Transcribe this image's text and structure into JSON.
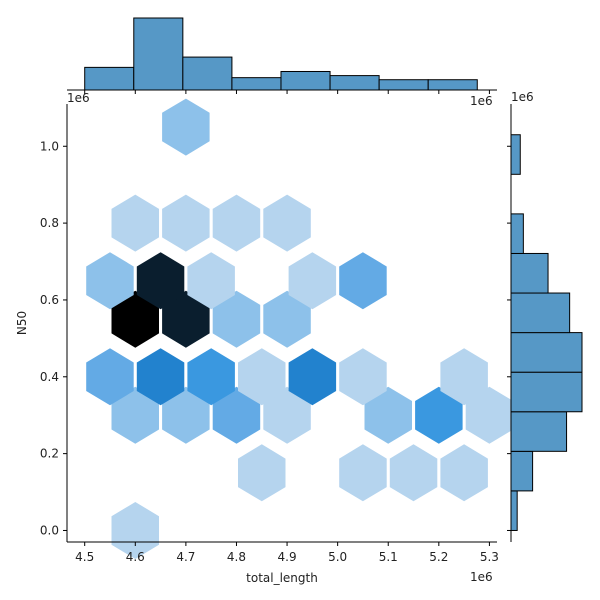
{
  "chart_data": {
    "type": "hexbin-jointplot",
    "xlabel": "total_length",
    "ylabel": "N50",
    "x_offset_text": "1e6",
    "y_offset_text": "1e6",
    "x_ticks": [
      4.5,
      4.6,
      4.7,
      4.8,
      4.9,
      5.0,
      5.1,
      5.2,
      5.3
    ],
    "x_tick_labels": [
      "4.5",
      "4.6",
      "4.7",
      "4.8",
      "4.9",
      "5.0",
      "5.1",
      "5.2",
      "5.3"
    ],
    "y_ticks": [
      0.0,
      0.2,
      0.4,
      0.6,
      0.8,
      1.0
    ],
    "y_tick_labels": [
      "0.0",
      "0.2",
      "0.4",
      "0.6",
      "0.8",
      "1.0"
    ],
    "xlim": [
      4.465,
      5.315
    ],
    "ylim": [
      -0.03,
      1.11
    ],
    "hexbins": [
      {
        "x": 4.6,
        "y": 0.0,
        "count": 1
      },
      {
        "x": 4.85,
        "y": 0.15,
        "count": 1
      },
      {
        "x": 5.05,
        "y": 0.15,
        "count": 2
      },
      {
        "x": 5.15,
        "y": 0.15,
        "count": 2
      },
      {
        "x": 5.25,
        "y": 0.15,
        "count": 1
      },
      {
        "x": 4.6,
        "y": 0.3,
        "count": 4
      },
      {
        "x": 4.7,
        "y": 0.3,
        "count": 3
      },
      {
        "x": 4.8,
        "y": 0.3,
        "count": 5
      },
      {
        "x": 4.9,
        "y": 0.3,
        "count": 2
      },
      {
        "x": 5.1,
        "y": 0.3,
        "count": 3
      },
      {
        "x": 5.2,
        "y": 0.3,
        "count": 6
      },
      {
        "x": 5.3,
        "y": 0.3,
        "count": 2
      },
      {
        "x": 4.55,
        "y": 0.4,
        "count": 5
      },
      {
        "x": 4.65,
        "y": 0.4,
        "count": 9
      },
      {
        "x": 4.75,
        "y": 0.4,
        "count": 7
      },
      {
        "x": 4.85,
        "y": 0.4,
        "count": 1
      },
      {
        "x": 4.95,
        "y": 0.4,
        "count": 9
      },
      {
        "x": 5.05,
        "y": 0.4,
        "count": 1
      },
      {
        "x": 5.25,
        "y": 0.4,
        "count": 1
      },
      {
        "x": 4.6,
        "y": 0.55,
        "count": 15
      },
      {
        "x": 4.7,
        "y": 0.55,
        "count": 13
      },
      {
        "x": 4.8,
        "y": 0.55,
        "count": 3
      },
      {
        "x": 4.9,
        "y": 0.55,
        "count": 4
      },
      {
        "x": 4.55,
        "y": 0.65,
        "count": 3
      },
      {
        "x": 4.65,
        "y": 0.65,
        "count": 13
      },
      {
        "x": 4.75,
        "y": 0.65,
        "count": 1
      },
      {
        "x": 4.95,
        "y": 0.65,
        "count": 2
      },
      {
        "x": 5.05,
        "y": 0.65,
        "count": 5
      },
      {
        "x": 4.6,
        "y": 0.8,
        "count": 1
      },
      {
        "x": 4.7,
        "y": 0.8,
        "count": 2
      },
      {
        "x": 4.8,
        "y": 0.8,
        "count": 1
      },
      {
        "x": 4.9,
        "y": 0.8,
        "count": 1
      },
      {
        "x": 4.7,
        "y": 1.05,
        "count": 3
      }
    ],
    "x_marginal_hist": {
      "bin_edges": [
        4.5,
        4.597,
        4.694,
        4.791,
        4.888,
        4.985,
        5.082,
        5.179,
        5.276
      ],
      "counts": [
        11,
        35,
        16,
        6,
        9,
        7,
        5,
        5
      ]
    },
    "y_marginal_hist": {
      "bin_edges": [
        0.0,
        0.103,
        0.206,
        0.309,
        0.412,
        0.515,
        0.618,
        0.721,
        0.824,
        0.927,
        1.03
      ],
      "counts": [
        2,
        7,
        18,
        23,
        23,
        19,
        12,
        4,
        0,
        3
      ]
    },
    "colors": {
      "bar_fill": "#5698c6",
      "bar_edge": "#000000",
      "colormap": [
        "#dbe9f6",
        "#b5d4ee",
        "#8dc1ea",
        "#63aae5",
        "#3a98e0",
        "#2282ce",
        "#1f6faf",
        "#194d7c",
        "#0a1e2e",
        "#000000"
      ]
    }
  }
}
